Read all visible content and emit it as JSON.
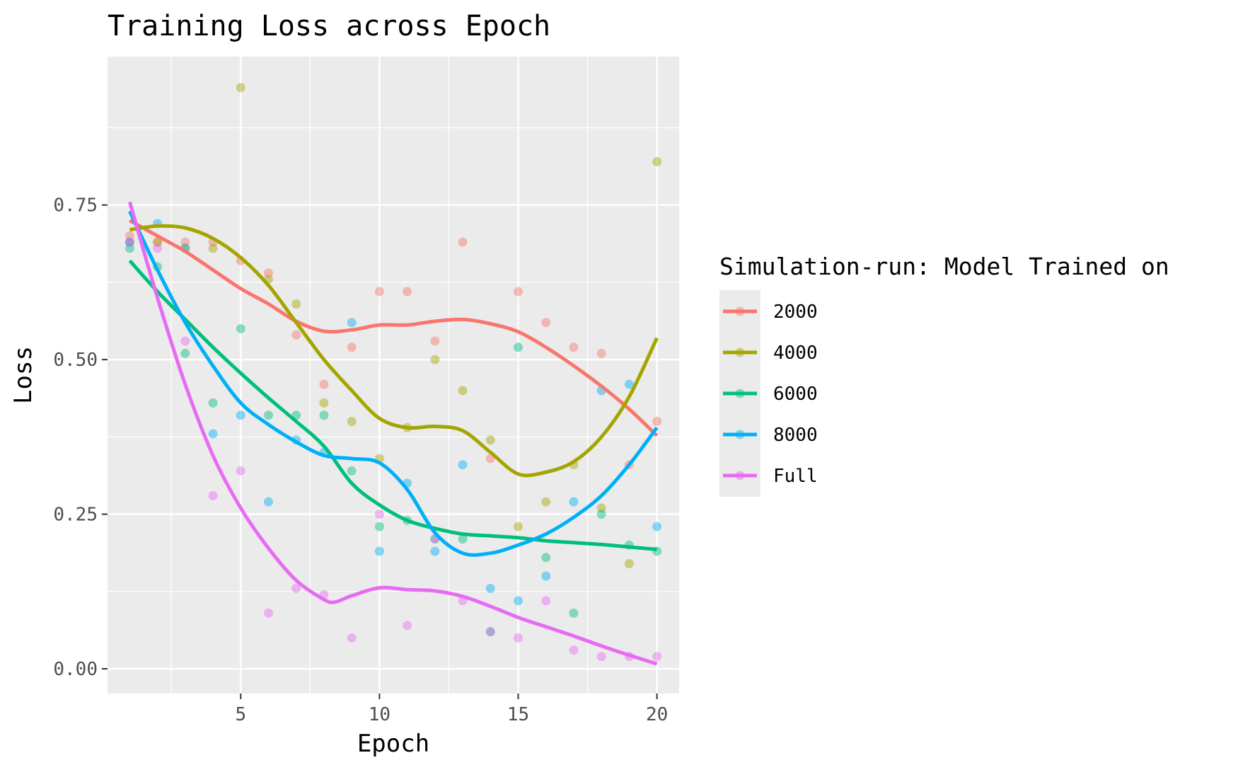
{
  "chart_data": {
    "type": "scatter",
    "title": "Training Loss across Epoch",
    "xlabel": "Epoch",
    "ylabel": "Loss",
    "xlim": [
      0.2,
      20.8
    ],
    "ylim": [
      -0.04,
      0.99
    ],
    "x_ticks": [
      5,
      10,
      15,
      20
    ],
    "x_tick_labels": [
      "5",
      "10",
      "15",
      "20"
    ],
    "y_ticks": [
      0,
      0.25,
      0.5,
      0.75
    ],
    "y_tick_labels": [
      "0.00",
      "0.25",
      "0.50",
      "0.75"
    ],
    "grid": true,
    "legend": {
      "title": "Simulation-run: Model Trained on",
      "position": "right"
    },
    "series": [
      {
        "name": "2000",
        "color": "#F8766D",
        "points": [
          [
            1,
            0.7
          ],
          [
            2,
            0.69
          ],
          [
            3,
            0.69
          ],
          [
            4,
            0.69
          ],
          [
            5,
            0.66
          ],
          [
            6,
            0.64
          ],
          [
            7,
            0.54
          ],
          [
            8,
            0.46
          ],
          [
            9,
            0.52
          ],
          [
            10,
            0.61
          ],
          [
            11,
            0.61
          ],
          [
            12,
            0.53
          ],
          [
            13,
            0.69
          ],
          [
            14,
            0.34
          ],
          [
            15,
            0.61
          ],
          [
            16,
            0.56
          ],
          [
            17,
            0.52
          ],
          [
            18,
            0.51
          ],
          [
            19,
            0.33
          ],
          [
            20,
            0.4
          ]
        ],
        "smooth": [
          [
            1,
            0.725
          ],
          [
            2,
            0.7
          ],
          [
            3,
            0.675
          ],
          [
            4,
            0.645
          ],
          [
            5,
            0.615
          ],
          [
            6,
            0.59
          ],
          [
            7,
            0.562
          ],
          [
            8,
            0.546
          ],
          [
            9,
            0.548
          ],
          [
            10,
            0.556
          ],
          [
            11,
            0.556
          ],
          [
            12,
            0.562
          ],
          [
            13,
            0.565
          ],
          [
            14,
            0.558
          ],
          [
            15,
            0.545
          ],
          [
            16,
            0.52
          ],
          [
            17,
            0.49
          ],
          [
            18,
            0.457
          ],
          [
            19,
            0.42
          ],
          [
            20,
            0.377
          ]
        ]
      },
      {
        "name": "4000",
        "color": "#A3A500",
        "points": [
          [
            1,
            0.69
          ],
          [
            2,
            0.69
          ],
          [
            3,
            0.68
          ],
          [
            4,
            0.68
          ],
          [
            5,
            0.94
          ],
          [
            6,
            0.63
          ],
          [
            7,
            0.59
          ],
          [
            8,
            0.43
          ],
          [
            9,
            0.4
          ],
          [
            10,
            0.34
          ],
          [
            11,
            0.39
          ],
          [
            12,
            0.5
          ],
          [
            13,
            0.45
          ],
          [
            14,
            0.37
          ],
          [
            15,
            0.23
          ],
          [
            16,
            0.27
          ],
          [
            17,
            0.33
          ],
          [
            18,
            0.26
          ],
          [
            19,
            0.17
          ],
          [
            20,
            0.82
          ]
        ],
        "smooth": [
          [
            1,
            0.71
          ],
          [
            2,
            0.716
          ],
          [
            3,
            0.713
          ],
          [
            4,
            0.696
          ],
          [
            5,
            0.665
          ],
          [
            6,
            0.62
          ],
          [
            7,
            0.56
          ],
          [
            8,
            0.5
          ],
          [
            9,
            0.45
          ],
          [
            10,
            0.405
          ],
          [
            11,
            0.39
          ],
          [
            12,
            0.392
          ],
          [
            13,
            0.385
          ],
          [
            14,
            0.35
          ],
          [
            15,
            0.315
          ],
          [
            16,
            0.318
          ],
          [
            17,
            0.335
          ],
          [
            18,
            0.375
          ],
          [
            19,
            0.44
          ],
          [
            20,
            0.535
          ]
        ]
      },
      {
        "name": "6000",
        "color": "#00BF7D",
        "points": [
          [
            1,
            0.68
          ],
          [
            2,
            0.65
          ],
          [
            3,
            0.51
          ],
          [
            4,
            0.43
          ],
          [
            5,
            0.55
          ],
          [
            6,
            0.41
          ],
          [
            7,
            0.41
          ],
          [
            8,
            0.41
          ],
          [
            9,
            0.32
          ],
          [
            10,
            0.23
          ],
          [
            11,
            0.24
          ],
          [
            12,
            0.21
          ],
          [
            13,
            0.21
          ],
          [
            14,
            0.06
          ],
          [
            15,
            0.52
          ],
          [
            16,
            0.18
          ],
          [
            17,
            0.09
          ],
          [
            18,
            0.25
          ],
          [
            19,
            0.2
          ],
          [
            20,
            0.19
          ]
        ],
        "smooth": [
          [
            1,
            0.66
          ],
          [
            2,
            0.61
          ],
          [
            3,
            0.565
          ],
          [
            4,
            0.52
          ],
          [
            5,
            0.478
          ],
          [
            6,
            0.438
          ],
          [
            7,
            0.4
          ],
          [
            8,
            0.36
          ],
          [
            9,
            0.3
          ],
          [
            10,
            0.265
          ],
          [
            11,
            0.24
          ],
          [
            12,
            0.227
          ],
          [
            13,
            0.218
          ],
          [
            14,
            0.215
          ],
          [
            15,
            0.212
          ],
          [
            16,
            0.207
          ],
          [
            17,
            0.204
          ],
          [
            18,
            0.201
          ],
          [
            19,
            0.197
          ],
          [
            20,
            0.193
          ]
        ]
      },
      {
        "name": "8000",
        "color": "#00B0F6",
        "points": [
          [
            1,
            0.69
          ],
          [
            2,
            0.72
          ],
          [
            3,
            0.68
          ],
          [
            4,
            0.38
          ],
          [
            5,
            0.41
          ],
          [
            6,
            0.27
          ],
          [
            7,
            0.37
          ],
          [
            8,
            0.35
          ],
          [
            9,
            0.56
          ],
          [
            10,
            0.19
          ],
          [
            11,
            0.3
          ],
          [
            12,
            0.19
          ],
          [
            13,
            0.33
          ],
          [
            14,
            0.13
          ],
          [
            15,
            0.11
          ],
          [
            16,
            0.15
          ],
          [
            17,
            0.27
          ],
          [
            18,
            0.45
          ],
          [
            19,
            0.46
          ],
          [
            20,
            0.23
          ]
        ],
        "smooth": [
          [
            1,
            0.74
          ],
          [
            2,
            0.645
          ],
          [
            3,
            0.56
          ],
          [
            4,
            0.49
          ],
          [
            5,
            0.43
          ],
          [
            6,
            0.395
          ],
          [
            7,
            0.367
          ],
          [
            8,
            0.345
          ],
          [
            9,
            0.34
          ],
          [
            10,
            0.333
          ],
          [
            11,
            0.29
          ],
          [
            12,
            0.22
          ],
          [
            13,
            0.187
          ],
          [
            14,
            0.187
          ],
          [
            15,
            0.2
          ],
          [
            16,
            0.218
          ],
          [
            17,
            0.245
          ],
          [
            18,
            0.28
          ],
          [
            19,
            0.33
          ],
          [
            20,
            0.39
          ]
        ]
      },
      {
        "name": "Full",
        "color": "#E76BF3",
        "points": [
          [
            1,
            0.69
          ],
          [
            2,
            0.68
          ],
          [
            3,
            0.53
          ],
          [
            4,
            0.28
          ],
          [
            5,
            0.32
          ],
          [
            6,
            0.09
          ],
          [
            7,
            0.13
          ],
          [
            8,
            0.12
          ],
          [
            9,
            0.05
          ],
          [
            10,
            0.25
          ],
          [
            11,
            0.07
          ],
          [
            12,
            0.21
          ],
          [
            13,
            0.11
          ],
          [
            14,
            0.06
          ],
          [
            15,
            0.05
          ],
          [
            16,
            0.11
          ],
          [
            17,
            0.03
          ],
          [
            18,
            0.02
          ],
          [
            19,
            0.02
          ],
          [
            20,
            0.02
          ]
        ],
        "smooth": [
          [
            1,
            0.755
          ],
          [
            2,
            0.6
          ],
          [
            3,
            0.46
          ],
          [
            4,
            0.345
          ],
          [
            5,
            0.26
          ],
          [
            6,
            0.195
          ],
          [
            7,
            0.143
          ],
          [
            8,
            0.112
          ],
          [
            8.4,
            0.108
          ],
          [
            9,
            0.118
          ],
          [
            10,
            0.131
          ],
          [
            11,
            0.128
          ],
          [
            12,
            0.126
          ],
          [
            13,
            0.117
          ],
          [
            14,
            0.101
          ],
          [
            15,
            0.083
          ],
          [
            16,
            0.068
          ],
          [
            17,
            0.053
          ],
          [
            18,
            0.037
          ],
          [
            19,
            0.022
          ],
          [
            20,
            0.008
          ]
        ]
      }
    ]
  }
}
